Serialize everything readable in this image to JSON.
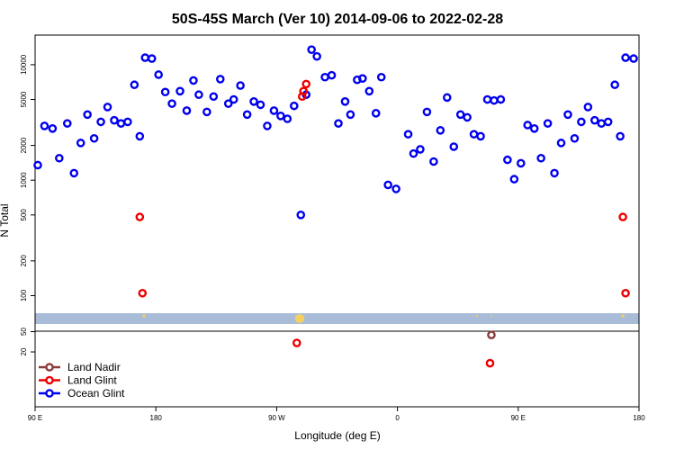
{
  "chart_data": {
    "type": "scatter",
    "title": "50S-45S March (Ver 10)   2014-09-06 to 2022-02-28",
    "xlabel": "Longitude (deg E)",
    "ylabel": "N Total",
    "x_ticks": [
      {
        "value": 90,
        "label": "90 E"
      },
      {
        "value": 180,
        "label": "180"
      },
      {
        "value": 270,
        "label": "90 W"
      },
      {
        "value": 360,
        "label": "0"
      },
      {
        "value": 450,
        "label": "90 E"
      },
      {
        "value": 540,
        "label": "180"
      }
    ],
    "upper_panel": {
      "scale": "log",
      "y_ticks": [
        100,
        200,
        500,
        1000,
        2000,
        5000,
        10000
      ],
      "colors": {
        "ocean_glint": "#0000ee",
        "land_glint": "#ee0000",
        "band": "#a8bcd8",
        "band_marks": "#f5d060"
      },
      "series": [
        {
          "name": "Ocean Glint",
          "points": [
            [
              92,
              1350
            ],
            [
              97,
              2950
            ],
            [
              103,
              2800
            ],
            [
              108,
              1550
            ],
            [
              114,
              3100
            ],
            [
              119,
              1150
            ],
            [
              124,
              2100
            ],
            [
              129,
              3700
            ],
            [
              134,
              2300
            ],
            [
              139,
              3200
            ],
            [
              144,
              4300
            ],
            [
              149,
              3300
            ],
            [
              154,
              3100
            ],
            [
              159,
              3200
            ],
            [
              164,
              6700
            ],
            [
              168,
              2400
            ],
            [
              172,
              11500
            ],
            [
              177,
              11300
            ],
            [
              182,
              8200
            ],
            [
              187,
              5800
            ],
            [
              192,
              4600
            ],
            [
              198,
              5900
            ],
            [
              203,
              4000
            ],
            [
              208,
              7300
            ],
            [
              212,
              5500
            ],
            [
              218,
              3900
            ],
            [
              223,
              5300
            ],
            [
              228,
              7500
            ],
            [
              234,
              4600
            ],
            [
              238,
              5000
            ],
            [
              243,
              6600
            ],
            [
              248,
              3700
            ],
            [
              253,
              4800
            ],
            [
              258,
              4500
            ],
            [
              263,
              2950
            ],
            [
              268,
              4000
            ],
            [
              273,
              3600
            ],
            [
              278,
              3400
            ],
            [
              283,
              4400
            ],
            [
              288,
              500
            ],
            [
              292,
              5500
            ],
            [
              296,
              13500
            ],
            [
              300,
              11800
            ],
            [
              306,
              7800
            ],
            [
              311,
              8100
            ],
            [
              316,
              3100
            ],
            [
              321,
              4800
            ],
            [
              325,
              3700
            ],
            [
              330,
              7400
            ],
            [
              334,
              7600
            ],
            [
              339,
              5900
            ],
            [
              344,
              3800
            ],
            [
              348,
              7800
            ],
            [
              353,
              910
            ],
            [
              359,
              840
            ],
            [
              368,
              2500
            ],
            [
              372,
              1700
            ],
            [
              377,
              1850
            ],
            [
              382,
              3900
            ],
            [
              387,
              1450
            ],
            [
              392,
              2700
            ],
            [
              397,
              5200
            ],
            [
              402,
              1950
            ],
            [
              407,
              3700
            ],
            [
              412,
              3500
            ],
            [
              417,
              2500
            ],
            [
              422,
              2400
            ],
            [
              427,
              5000
            ],
            [
              432,
              4900
            ],
            [
              437,
              5000
            ],
            [
              442,
              1500
            ],
            [
              447,
              1020
            ],
            [
              452,
              1400
            ],
            [
              457,
              3000
            ],
            [
              462,
              2800
            ],
            [
              467,
              1550
            ],
            [
              472,
              3100
            ],
            [
              477,
              1150
            ],
            [
              482,
              2100
            ],
            [
              487,
              3700
            ],
            [
              492,
              2300
            ],
            [
              497,
              3200
            ],
            [
              502,
              4300
            ],
            [
              507,
              3300
            ],
            [
              512,
              3100
            ],
            [
              517,
              3200
            ],
            [
              522,
              6700
            ],
            [
              526,
              2400
            ],
            [
              530,
              11500
            ],
            [
              536,
              11300
            ]
          ]
        },
        {
          "name": "Land Glint",
          "points": [
            [
              168,
              480
            ],
            [
              170,
              105
            ],
            [
              289,
              5300
            ],
            [
              290,
              5900
            ],
            [
              292,
              6800
            ],
            [
              528,
              480
            ],
            [
              530,
              105
            ]
          ]
        }
      ]
    },
    "lower_panel": {
      "scale": "log",
      "y_ticks": [
        20,
        50
      ],
      "series": [
        {
          "name": "Land Nadir",
          "color": "#8b3a3a",
          "points": [
            [
              430,
              43
            ]
          ]
        },
        {
          "name": "Land Glint",
          "color": "#ee0000",
          "points": [
            [
              285,
              30
            ],
            [
              429,
              12
            ]
          ]
        },
        {
          "name": "Ocean Glint",
          "color": "#0000ee",
          "points": []
        }
      ]
    },
    "legend": {
      "placement": "bottom-left",
      "entries": [
        {
          "label": "Land Nadir",
          "color": "#8b3a3a"
        },
        {
          "label": "Land Glint",
          "color": "#ee0000"
        },
        {
          "label": "Ocean Glint",
          "color": "#0000ee"
        }
      ]
    }
  }
}
